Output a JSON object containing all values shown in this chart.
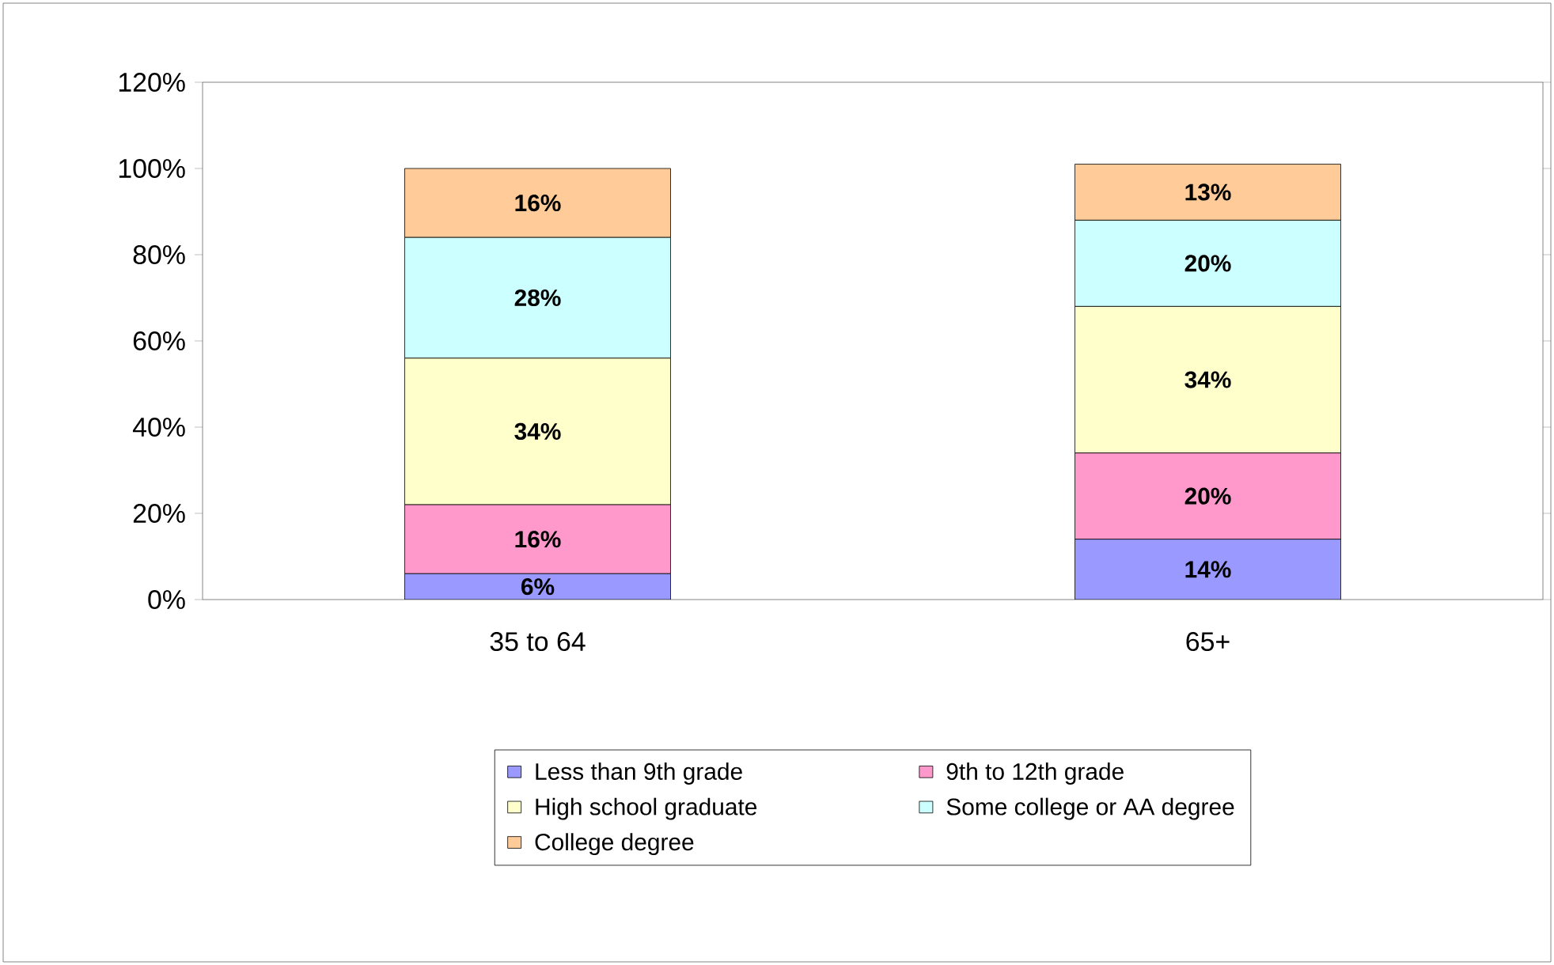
{
  "chart_data": {
    "type": "bar",
    "stacked": true,
    "categories": [
      "35 to 64",
      "65+"
    ],
    "series": [
      {
        "name": "Less than 9th grade",
        "color": "#9999ff",
        "values": [
          6,
          14
        ],
        "value_labels": [
          "6%",
          "14%"
        ]
      },
      {
        "name": "9th to 12th grade",
        "color": "#ff99cc",
        "values": [
          16,
          20
        ],
        "value_labels": [
          "16%",
          "20%"
        ]
      },
      {
        "name": "High school graduate",
        "color": "#ffffcc",
        "values": [
          34,
          34
        ],
        "value_labels": [
          "34%",
          "34%"
        ]
      },
      {
        "name": "Some college or AA degree",
        "color": "#ccffff",
        "values": [
          28,
          20
        ],
        "value_labels": [
          "28%",
          "20%"
        ]
      },
      {
        "name": "College degree",
        "color": "#ffcc99",
        "values": [
          16,
          13
        ],
        "value_labels": [
          "16%",
          "13%"
        ]
      }
    ],
    "ylim": [
      0,
      120
    ],
    "yticks": [
      {
        "value": 0,
        "label": "0%"
      },
      {
        "value": 20,
        "label": "20%"
      },
      {
        "value": 40,
        "label": "40%"
      },
      {
        "value": 60,
        "label": "60%"
      },
      {
        "value": 80,
        "label": "80%"
      },
      {
        "value": 100,
        "label": "100%"
      },
      {
        "value": 120,
        "label": "120%"
      }
    ],
    "grid": false,
    "legend": "bottom"
  }
}
